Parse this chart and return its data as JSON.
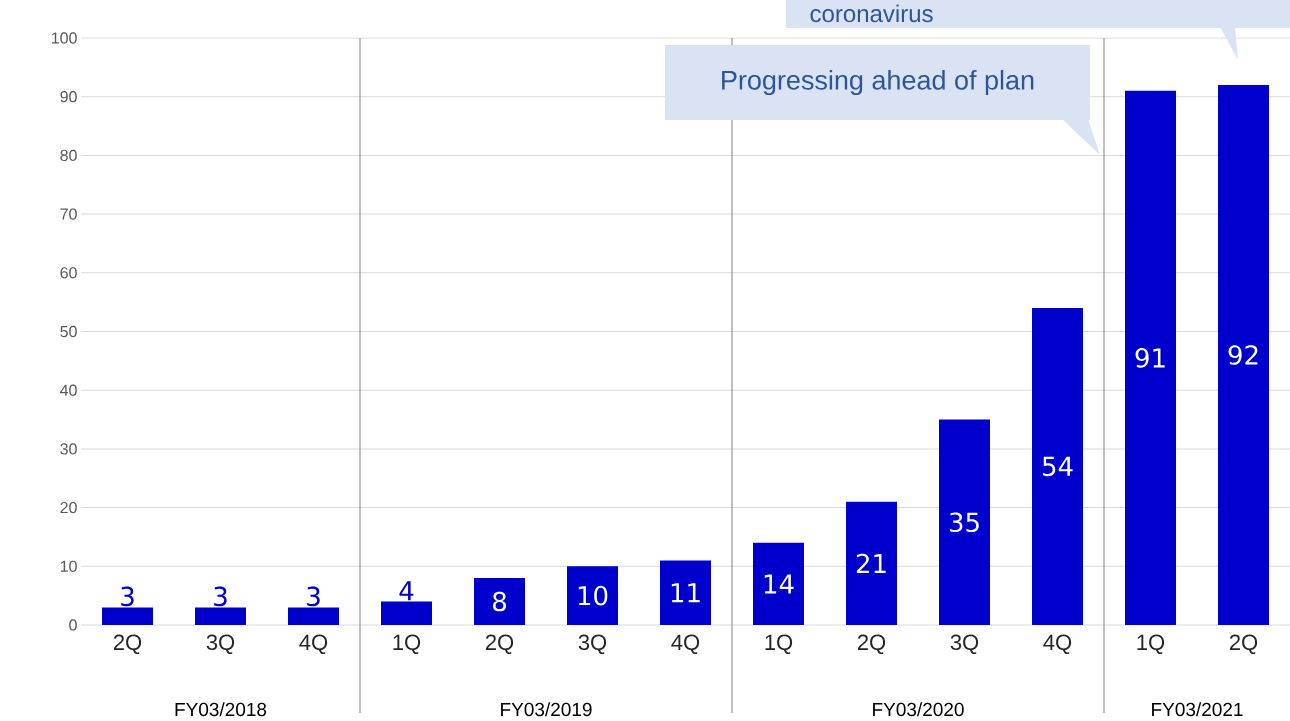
{
  "chart_data": {
    "type": "bar",
    "categories": [
      "2Q",
      "3Q",
      "4Q",
      "1Q",
      "2Q",
      "3Q",
      "4Q",
      "1Q",
      "2Q",
      "3Q",
      "4Q",
      "1Q",
      "2Q"
    ],
    "values": [
      3,
      3,
      3,
      4,
      8,
      10,
      11,
      14,
      21,
      35,
      54,
      91,
      92
    ],
    "color": "#0000cc",
    "data_labels": true,
    "ylim": [
      0,
      100
    ],
    "yticks": [
      0,
      10,
      20,
      30,
      40,
      50,
      60,
      70,
      80,
      90,
      100
    ],
    "grid": "y",
    "annotations": [
      "coronavirus",
      "Progressing ahead of plan",
      "FY03/2018",
      "FY03/2019",
      "FY03/2020",
      "FY03/2021"
    ]
  }
}
